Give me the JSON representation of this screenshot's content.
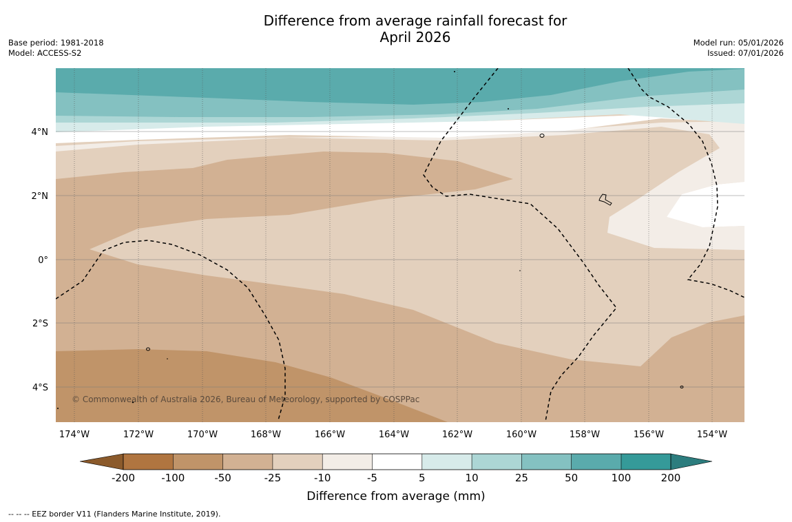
{
  "title_line1": "Difference from average rainfall forecast for",
  "title_line2": "April 2026",
  "base_period": "Base period: 1981-2018",
  "model": "Model: ACCESS-S2",
  "model_run": "Model run: 05/01/2026",
  "issued": "Issued: 07/01/2026",
  "copyright": "© Commonwealth of Australia 2026, Bureau of Meteorology, supported by COSPPac",
  "footnote": "--  --  -- EEZ border V11 (Flanders Marine Institute, 2019).",
  "lat_labels": [
    "4°N",
    "2°N",
    "0°",
    "2°S",
    "4°S"
  ],
  "lon_labels": [
    "174°W",
    "172°W",
    "170°W",
    "168°W",
    "166°W",
    "164°W",
    "162°W",
    "160°W",
    "158°W",
    "156°W",
    "154°W"
  ],
  "colorbar": {
    "label": "Difference from average (mm)",
    "ticks": [
      "-200",
      "-100",
      "-50",
      "-25",
      "-10",
      "-5",
      "5",
      "10",
      "25",
      "50",
      "100",
      "200"
    ],
    "colors": [
      "#8b5a2b",
      "#b07540",
      "#c09469",
      "#d2b193",
      "#e3d0bd",
      "#f3ede7",
      "#ffffff",
      "#d7ebea",
      "#acd6d5",
      "#84c1c1",
      "#5aabac",
      "#359a99",
      "#2c7d7e"
    ]
  }
}
